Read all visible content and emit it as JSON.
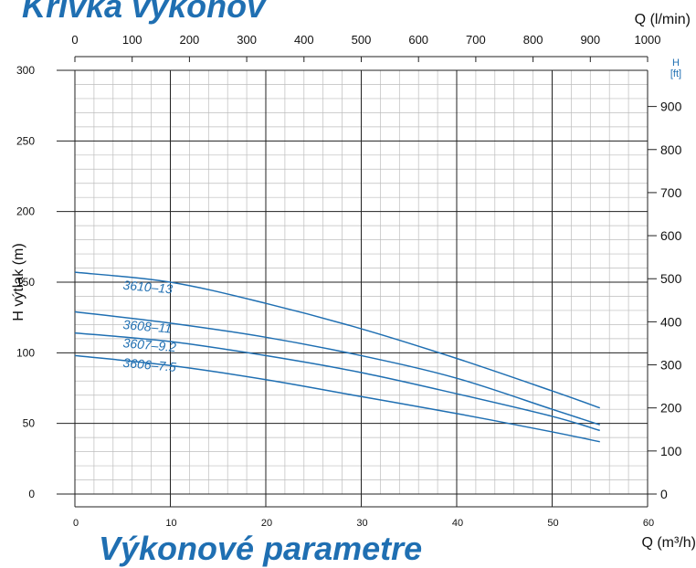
{
  "headings": {
    "top": "Krivka výkonov",
    "bottom": "Výkonové parametre"
  },
  "chart_data": {
    "type": "line",
    "title": "",
    "xlabel": "Q (m³/h)",
    "ylabel": "H výtlak (m)",
    "x2label": "Q (l/min)",
    "y2label_line1": "H",
    "y2label_line2": "[ft]",
    "xlim": [
      0,
      60
    ],
    "ylim": [
      0,
      300
    ],
    "x_ticks": [
      0,
      10,
      20,
      30,
      40,
      50,
      60
    ],
    "y_ticks": [
      0,
      50,
      100,
      150,
      200,
      250,
      300
    ],
    "x2lim": [
      0,
      1000
    ],
    "x2_ticks": [
      0,
      100,
      200,
      300,
      400,
      500,
      600,
      700,
      800,
      900,
      1000
    ],
    "y2lim": [
      0,
      984
    ],
    "y2_ticks": [
      0,
      100,
      200,
      300,
      400,
      500,
      600,
      700,
      800,
      900
    ],
    "grid": true,
    "line_color": "#1f6fb2",
    "series": [
      {
        "name": "3610–13",
        "x": [
          0,
          10,
          20,
          30,
          40,
          50,
          55
        ],
        "y": [
          157,
          150,
          135,
          117,
          96,
          73,
          61
        ],
        "label_at": [
          5,
          145
        ]
      },
      {
        "name": "3608–11",
        "x": [
          0,
          10,
          20,
          30,
          40,
          50,
          55
        ],
        "y": [
          129,
          121,
          111,
          98,
          82,
          60,
          49
        ],
        "label_at": [
          5,
          117
        ]
      },
      {
        "name": "3607–9.2",
        "x": [
          0,
          10,
          20,
          30,
          40,
          50,
          55
        ],
        "y": [
          114,
          108,
          98,
          86,
          71,
          55,
          45
        ],
        "label_at": [
          5,
          104
        ]
      },
      {
        "name": "3606–7.5",
        "x": [
          0,
          10,
          20,
          30,
          40,
          50,
          55
        ],
        "y": [
          98,
          91,
          81,
          69,
          57,
          44,
          37
        ],
        "label_at": [
          5,
          90
        ]
      }
    ]
  }
}
